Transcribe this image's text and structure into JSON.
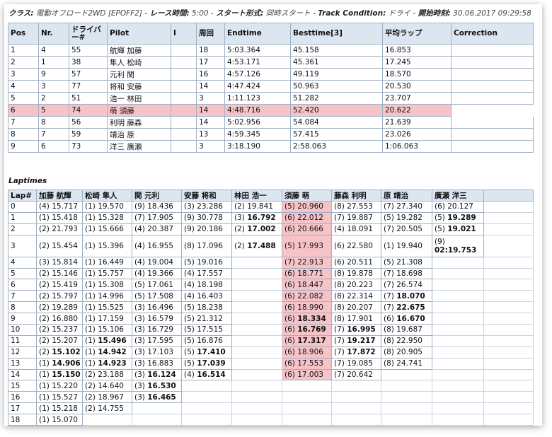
{
  "header": {
    "class_label": "クラス:",
    "class_value": "電動オフロード2WD [EPOFF2]",
    "race_time_label": "レース時間:",
    "race_time_value": "5:00",
    "start_format_label": "スタート形式:",
    "start_format_value": "同時スタート",
    "track_condition_label": "Track Condition:",
    "track_condition_value": "ドライ",
    "start_time_label": "開始時刻:",
    "start_time_value": "30.06.2017 09:29:58",
    "separator": "-"
  },
  "results": {
    "columns": [
      "Pos",
      "Nr.",
      "ドライバー#",
      "Pilot",
      "I",
      "周回",
      "Endtime",
      "Besttime[3]",
      "平均ラップ",
      "Correction"
    ],
    "highlight_row": 5,
    "rows": [
      [
        "1",
        "4",
        "55",
        "航輝 加藤",
        "",
        "18",
        "5:03.364",
        "45.158",
        "16.853",
        ""
      ],
      [
        "2",
        "1",
        "38",
        "隼人 松崎",
        "",
        "17",
        "4:53.171",
        "45.361",
        "17.245",
        ""
      ],
      [
        "3",
        "9",
        "57",
        "元利 関",
        "",
        "16",
        "4:57.126",
        "49.119",
        "18.570",
        ""
      ],
      [
        "4",
        "3",
        "77",
        "将和 安藤",
        "",
        "14",
        "4:47.424",
        "50.963",
        "20.530",
        ""
      ],
      [
        "5",
        "2",
        "51",
        "浩一 林田",
        "",
        "3",
        "1:11.123",
        "51.282",
        "23.707",
        ""
      ],
      [
        "6",
        "5",
        "74",
        "萌 須藤",
        "",
        "14",
        "4:48.716",
        "52.420",
        "20.622",
        ""
      ],
      [
        "7",
        "8",
        "56",
        "利明 藤森",
        "",
        "14",
        "5:02.956",
        "54.084",
        "21.639",
        ""
      ],
      [
        "8",
        "7",
        "59",
        "靖治 原",
        "",
        "13",
        "4:59.345",
        "57.415",
        "23.026",
        ""
      ],
      [
        "9",
        "6",
        "73",
        "洋三 廣瀬",
        "",
        "3",
        "3:18.190",
        "2:58.063",
        "1:06.063",
        ""
      ]
    ]
  },
  "laptimes": {
    "title": "Laptimes",
    "columns": [
      "Lap#",
      "加藤 航輝",
      "松崎 隼人",
      "関 元利",
      "安藤 将和",
      "林田 浩一",
      "須藤 萌",
      "藤森 利明",
      "原 靖治",
      "廣瀬 洋三"
    ],
    "highlight_col": 6,
    "rows": [
      [
        "0",
        "(4) 15.717",
        "(1) 19.570",
        "(9) 18.436",
        "(3) 23.286",
        "(2) 19.841",
        "(5) 20.960",
        "(8) 27.553",
        "(7) 27.340",
        "(6) 20.127"
      ],
      [
        "1",
        "(1) 15.418",
        "(1) 15.328",
        "(7) 17.905",
        "(9) 30.778",
        "(3) 16.792",
        "(6) 22.012",
        "(7) 19.887",
        "(5) 19.282",
        "(5) 19.289"
      ],
      [
        "2",
        "(2) 21.793",
        "(1) 15.666",
        "(4) 20.387",
        "(9) 20.186",
        "(2) 17.002",
        "(6) 20.666",
        "(4) 18.091",
        "(7) 20.505",
        "(5) 19.021"
      ],
      [
        "3",
        "(2) 15.454",
        "(1) 15.396",
        "(4) 16.955",
        "(8) 17.096",
        "(2) 17.488",
        "(5) 17.993",
        "(6) 22.580",
        "(1) 19.940",
        "(9) 02:19.753"
      ],
      [
        "4",
        "(3) 15.814",
        "(1) 16.449",
        "(4) 19.004",
        "(5) 19.016",
        "",
        "(7) 22.913",
        "(6) 20.511",
        "(5) 21.308",
        ""
      ],
      [
        "5",
        "(2) 15.146",
        "(1) 15.757",
        "(4) 19.366",
        "(4) 17.557",
        "",
        "(6) 18.771",
        "(8) 19.878",
        "(7) 18.698",
        ""
      ],
      [
        "6",
        "(2) 15.419",
        "(1) 15.308",
        "(5) 17.061",
        "(4) 18.198",
        "",
        "(6) 18.447",
        "(8) 20.223",
        "(7) 26.574",
        ""
      ],
      [
        "7",
        "(2) 15.797",
        "(1) 14.996",
        "(5) 17.508",
        "(4) 16.403",
        "",
        "(6) 22.082",
        "(8) 22.314",
        "(7) 18.070",
        ""
      ],
      [
        "8",
        "(2) 19.289",
        "(1) 15.525",
        "(3) 16.496",
        "(5) 18.238",
        "",
        "(6) 18.990",
        "(8) 20.207",
        "(7) 22.675",
        ""
      ],
      [
        "9",
        "(2) 16.880",
        "(1) 17.159",
        "(3) 16.579",
        "(5) 21.312",
        "",
        "(6) 18.334",
        "(8) 17.901",
        "(6) 16.670",
        ""
      ],
      [
        "10",
        "(2) 15.237",
        "(1) 15.106",
        "(3) 16.729",
        "(5) 17.515",
        "",
        "(6) 16.769",
        "(7) 16.995",
        "(8) 19.687",
        ""
      ],
      [
        "11",
        "(2) 15.207",
        "(1) 15.496",
        "(3) 17.595",
        "(5) 16.876",
        "",
        "(6) 17.317",
        "(7) 19.217",
        "(8) 22.950",
        ""
      ],
      [
        "12",
        "(2) 15.102",
        "(1) 14.942",
        "(3) 17.103",
        "(5) 17.410",
        "",
        "(6) 18.906",
        "(7) 17.872",
        "(8) 20.905",
        ""
      ],
      [
        "13",
        "(1) 14.906",
        "(1) 14.923",
        "(3) 16.883",
        "(5) 17.039",
        "",
        "(6) 17.553",
        "(7) 19.085",
        "(8) 24.741",
        ""
      ],
      [
        "14",
        "(1) 15.150",
        "(2) 23.188",
        "(3) 16.124",
        "(4) 16.514",
        "",
        "(6) 17.003",
        "(7) 20.642",
        "",
        ""
      ],
      [
        "15",
        "(1) 15.220",
        "(2) 14.640",
        "(3) 16.530",
        "",
        "",
        "",
        "",
        "",
        ""
      ],
      [
        "16",
        "(1) 15.527",
        "(2) 18.967",
        "(3) 16.465",
        "",
        "",
        "",
        "",
        "",
        ""
      ],
      [
        "17",
        "(1) 15.218",
        "(2) 14.755",
        "",
        "",
        "",
        "",
        "",
        "",
        ""
      ],
      [
        "18",
        "(1) 15.070",
        "",
        "",
        "",
        "",
        "",
        "",
        "",
        ""
      ]
    ],
    "bold_cells": [
      [
        1,
        5
      ],
      [
        1,
        9
      ],
      [
        2,
        5
      ],
      [
        2,
        9
      ],
      [
        3,
        5
      ],
      [
        3,
        9
      ],
      [
        7,
        8
      ],
      [
        8,
        8
      ],
      [
        9,
        6
      ],
      [
        9,
        8
      ],
      [
        10,
        6
      ],
      [
        10,
        7
      ],
      [
        11,
        2
      ],
      [
        11,
        6
      ],
      [
        11,
        7
      ],
      [
        12,
        1
      ],
      [
        12,
        2
      ],
      [
        12,
        4
      ],
      [
        12,
        7
      ],
      [
        13,
        1
      ],
      [
        13,
        2
      ],
      [
        13,
        4
      ],
      [
        14,
        1
      ],
      [
        14,
        3
      ],
      [
        14,
        4
      ],
      [
        15,
        3
      ],
      [
        16,
        3
      ]
    ]
  }
}
